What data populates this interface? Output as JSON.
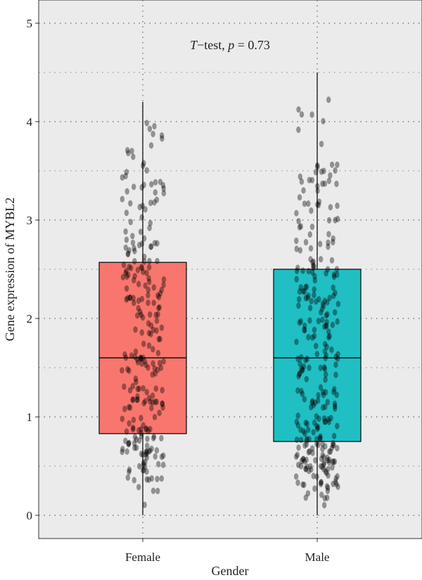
{
  "chart_data": {
    "type": "box",
    "xlabel": "Gender",
    "ylabel": "Gene expression of MYBL2",
    "ylim": [
      -0.25,
      5.25
    ],
    "yticks": [
      "0",
      "1",
      "2",
      "3",
      "4",
      "5"
    ],
    "grid": true,
    "annotation": {
      "italic_part": "T",
      "text_part": "−test, ",
      "p_label": "p",
      "p_value": " = 0.73"
    },
    "categories": [
      "Female",
      "Male"
    ],
    "series": [
      {
        "category": "Female",
        "color": "#F8766D",
        "whisker_low": 0.0,
        "q1": 0.83,
        "median": 1.6,
        "q3": 2.57,
        "whisker_high": 4.2,
        "n_points": 260
      },
      {
        "category": "Male",
        "color": "#1FBFC3",
        "whisker_low": 0.0,
        "q1": 0.75,
        "median": 1.6,
        "q3": 2.5,
        "whisker_high": 4.5,
        "n_points": 300
      }
    ]
  }
}
